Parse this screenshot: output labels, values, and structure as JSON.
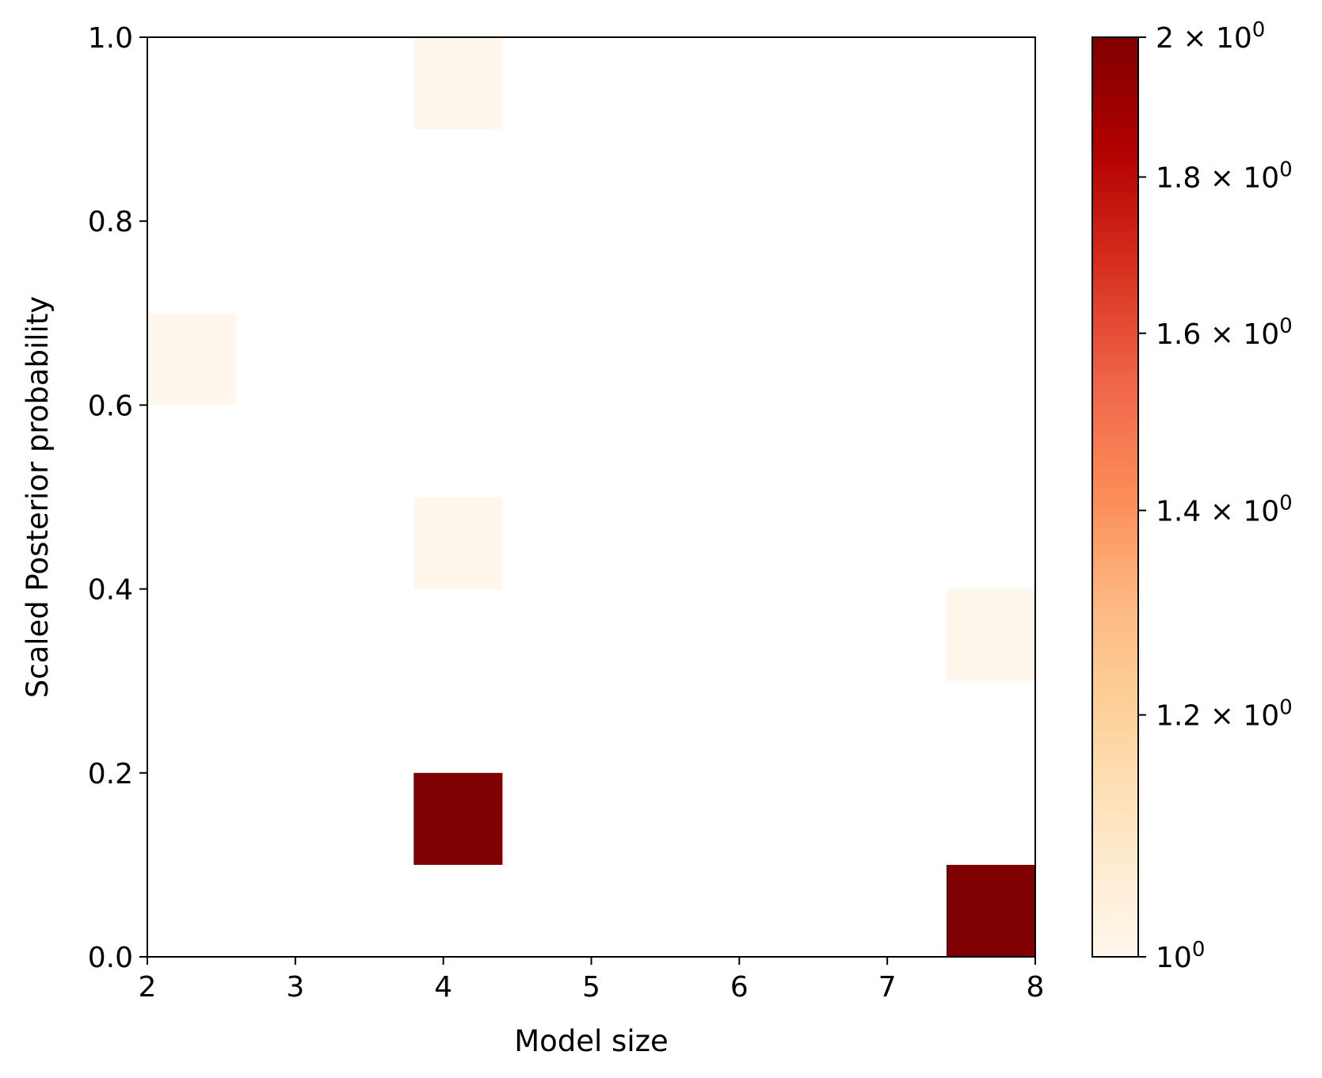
{
  "chart_data": {
    "type": "heatmap",
    "title": "",
    "xlabel": "Model size",
    "ylabel": "Scaled Posterior probability",
    "xlim": [
      2,
      8
    ],
    "ylim": [
      0,
      1
    ],
    "x_ticks": [
      "2",
      "3",
      "4",
      "5",
      "6",
      "7",
      "8"
    ],
    "y_ticks": [
      "0.0",
      "0.2",
      "0.4",
      "0.6",
      "0.8",
      "1.0"
    ],
    "bin_width_x": 0.6,
    "bin_height_y": 0.1,
    "cells": [
      {
        "x0": 2.0,
        "x1": 2.6,
        "y0": 0.6,
        "y1": 0.7,
        "count": 1
      },
      {
        "x0": 3.8,
        "x1": 4.4,
        "y0": 0.9,
        "y1": 1.0,
        "count": 1
      },
      {
        "x0": 3.8,
        "x1": 4.4,
        "y0": 0.4,
        "y1": 0.5,
        "count": 1
      },
      {
        "x0": 3.8,
        "x1": 4.4,
        "y0": 0.1,
        "y1": 0.2,
        "count": 2
      },
      {
        "x0": 7.4,
        "x1": 8.0,
        "y0": 0.3,
        "y1": 0.4,
        "count": 1
      },
      {
        "x0": 7.4,
        "x1": 8.0,
        "y0": 0.0,
        "y1": 0.1,
        "count": 2
      }
    ],
    "colorbar": {
      "scale": "log",
      "colormap": "OrRd",
      "min": 1,
      "max": 2,
      "ticks": [
        {
          "value": 1.0,
          "mantissa": "",
          "exp": "0"
        },
        {
          "value": 1.2,
          "mantissa": "1.2",
          "exp": "0"
        },
        {
          "value": 1.4,
          "mantissa": "1.4",
          "exp": "0"
        },
        {
          "value": 1.6,
          "mantissa": "1.6",
          "exp": "0"
        },
        {
          "value": 1.8,
          "mantissa": "1.8",
          "exp": "0"
        },
        {
          "value": 2.0,
          "mantissa": "2",
          "exp": "0"
        }
      ],
      "stops": [
        "#fff7ec",
        "#fee8c8",
        "#fdd49e",
        "#fdbb84",
        "#fc8d59",
        "#ef6548",
        "#d7301f",
        "#b30000",
        "#7f0000"
      ]
    }
  }
}
